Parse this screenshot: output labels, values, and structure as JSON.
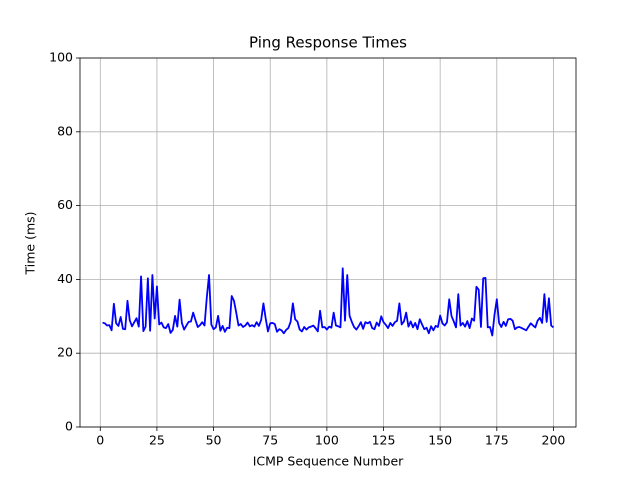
{
  "chart_data": {
    "type": "line",
    "title": "Ping Response Times",
    "x_label": "ICMP Sequence Number",
    "y_label": "Time (ms)",
    "x": [
      1,
      2,
      3,
      4,
      5,
      6,
      7,
      8,
      9,
      10,
      11,
      12,
      13,
      14,
      15,
      16,
      17,
      18,
      19,
      20,
      21,
      22,
      23,
      24,
      25,
      26,
      27,
      28,
      29,
      30,
      31,
      32,
      33,
      34,
      35,
      36,
      37,
      38,
      39,
      40,
      41,
      42,
      43,
      44,
      45,
      46,
      47,
      48,
      49,
      50,
      51,
      52,
      53,
      54,
      55,
      56,
      57,
      58,
      59,
      60,
      61,
      62,
      63,
      64,
      65,
      66,
      67,
      68,
      69,
      70,
      71,
      72,
      73,
      74,
      75,
      76,
      77,
      78,
      79,
      80,
      81,
      82,
      83,
      84,
      85,
      86,
      87,
      88,
      89,
      90,
      91,
      92,
      93,
      94,
      95,
      96,
      97,
      98,
      99,
      100,
      101,
      102,
      103,
      104,
      105,
      106,
      107,
      108,
      109,
      110,
      111,
      112,
      113,
      114,
      115,
      116,
      117,
      118,
      119,
      120,
      121,
      122,
      123,
      124,
      125,
      126,
      127,
      128,
      129,
      130,
      131,
      132,
      133,
      134,
      135,
      136,
      137,
      138,
      139,
      140,
      141,
      142,
      143,
      144,
      145,
      146,
      147,
      148,
      149,
      150,
      151,
      152,
      153,
      154,
      155,
      156,
      157,
      158,
      159,
      160,
      161,
      162,
      163,
      164,
      165,
      166,
      167,
      168,
      169,
      170,
      171,
      172,
      173,
      174,
      175,
      176,
      177,
      178,
      179,
      180,
      181,
      182,
      183,
      184,
      185,
      186,
      187,
      188,
      189,
      190,
      191,
      192,
      193,
      194,
      195,
      196,
      197,
      198,
      199,
      200
    ],
    "series": [
      {
        "color": "#0000ff",
        "values": [
          28.3,
          28.1,
          27.5,
          27.6,
          26.2,
          33.4,
          28.1,
          27.4,
          29.8,
          26.6,
          26.5,
          34.2,
          28.9,
          27.3,
          28.4,
          29.5,
          27.2,
          40.8,
          26.0,
          27.2,
          40.3,
          26.1,
          41.2,
          29.4,
          38.1,
          27.8,
          28.3,
          27.0,
          26.8,
          27.9,
          25.5,
          26.3,
          30.1,
          27.2,
          34.5,
          28.2,
          26.4,
          27.5,
          28.5,
          28.6,
          31.0,
          29.0,
          27.1,
          27.6,
          28.4,
          27.5,
          35.0,
          41.2,
          27.8,
          26.5,
          27.0,
          30.1,
          26.1,
          27.4,
          25.8,
          26.9,
          26.8,
          35.5,
          34.2,
          31.0,
          27.5,
          27.9,
          27.1,
          27.5,
          28.3,
          27.3,
          27.6,
          27.2,
          28.4,
          27.4,
          29.0,
          33.5,
          29.4,
          25.9,
          28.1,
          28.2,
          27.9,
          25.8,
          26.5,
          26.2,
          25.4,
          26.3,
          26.8,
          28.5,
          33.5,
          29.2,
          28.6,
          26.4,
          25.9,
          27.1,
          26.4,
          27.0,
          27.2,
          27.5,
          26.8,
          25.9,
          31.5,
          27.0,
          27.1,
          26.4,
          27.2,
          26.9,
          31.0,
          27.5,
          27.3,
          27.0,
          43.0,
          28.8,
          41.2,
          30.2,
          28.5,
          27.1,
          26.4,
          27.3,
          28.4,
          26.6,
          28.4,
          28.1,
          28.5,
          26.8,
          26.5,
          28.3,
          27.4,
          30.0,
          28.4,
          27.7,
          26.8,
          28.2,
          27.4,
          28.4,
          28.8,
          33.5,
          27.8,
          28.6,
          31.0,
          27.2,
          28.6,
          27.0,
          28.2,
          26.5,
          29.2,
          27.8,
          26.5,
          26.9,
          25.4,
          27.3,
          26.2,
          27.4,
          27.1,
          30.2,
          28.1,
          27.5,
          28.4,
          34.6,
          30.1,
          28.6,
          27.0,
          36.0,
          27.5,
          28.2,
          27.2,
          28.7,
          26.8,
          29.4,
          28.8,
          38.0,
          37.2,
          27.1,
          40.3,
          40.4,
          27.0,
          27.1,
          24.8,
          30.5,
          34.6,
          28.2,
          27.1,
          28.5,
          27.4,
          29.2,
          29.3,
          28.8,
          26.5,
          27.0,
          27.1,
          26.8,
          26.5,
          26.2,
          27.2,
          28.1,
          27.5,
          27.0,
          28.8,
          29.6,
          28.2,
          36.0,
          28.5,
          34.9,
          27.5,
          27.0
        ]
      }
    ],
    "xlim": [
      -8.95,
      209.95
    ],
    "xticks": [
      0,
      25,
      50,
      75,
      100,
      125,
      150,
      175,
      200
    ],
    "ylim": [
      0,
      100
    ],
    "yticks": [
      0,
      20,
      40,
      60,
      80,
      100
    ],
    "grid": true
  }
}
